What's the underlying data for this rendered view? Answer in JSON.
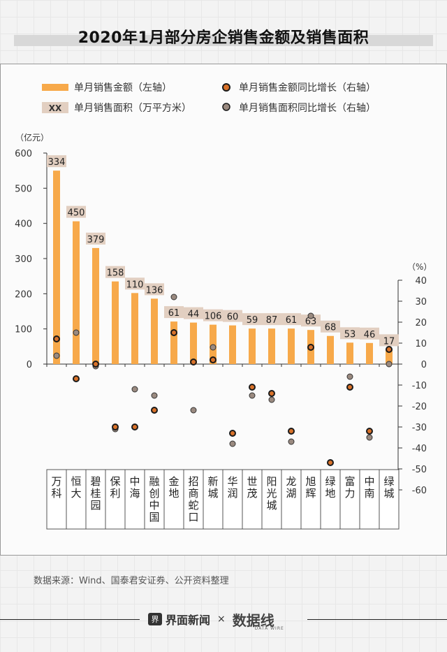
{
  "title": "2020年1月部分房企销售金额及销售面积",
  "legend": {
    "bar_label": "单月销售金额（左轴）",
    "area_chip": "XX",
    "area_label": "单月销售面积（万平方米）",
    "amount_yoy_label": "单月销售金额同比增长（右轴）",
    "area_yoy_label": "单月销售面积同比增长（右轴）"
  },
  "source": "数据来源：Wind、国泰君安证券、公开资料整理",
  "footer": {
    "brand_icon": "界",
    "brand_name": "界面新闻",
    "separator": "×",
    "partner": "数据线",
    "partner_sub": "DATA WIRE"
  },
  "colors": {
    "bar": "#f7a94a",
    "area_chip": "#e2cfc1",
    "amount_dot": "#d9722a",
    "area_dot": "#9a8a80",
    "dot_stroke": "#1a1a1a"
  },
  "chart_data": {
    "type": "bar",
    "title": "2020年1月部分房企销售金额及销售面积",
    "categories": [
      "万科",
      "恒大",
      "碧桂园",
      "保利",
      "中海",
      "融创中国",
      "金地",
      "招商蛇口",
      "新城",
      "华润",
      "世茂",
      "阳光城",
      "龙湖",
      "旭辉",
      "绿地",
      "富力",
      "中南",
      "绿城"
    ],
    "y_left": {
      "label": "（亿元）",
      "range": [
        0,
        600
      ],
      "ticks": [
        0,
        100,
        200,
        300,
        400,
        500,
        600
      ]
    },
    "y_right": {
      "label": "（%）",
      "range": [
        -60,
        40
      ],
      "ticks": [
        40,
        30,
        20,
        10,
        0,
        -10,
        -20,
        -30,
        -40,
        -50,
        -60
      ]
    },
    "series": [
      {
        "name": "单月销售金额",
        "axis": "left",
        "values": [
          550,
          406,
          330,
          235,
          202,
          186,
          121,
          118,
          112,
          110,
          101,
          101,
          101,
          97,
          80,
          61,
          60,
          41
        ]
      },
      {
        "name": "单月销售面积",
        "unit": "万平方米",
        "labels": [
          "334",
          "450",
          "379",
          "158",
          "110",
          "136",
          "61",
          "44",
          "106",
          "60",
          "59",
          "87",
          "61",
          "63",
          "68",
          "53",
          "46",
          "17"
        ]
      },
      {
        "name": "单月销售金额同比增长",
        "axis": "right",
        "values": [
          12,
          -7,
          0,
          -30,
          -30,
          -22,
          15,
          1,
          2,
          -33,
          -11,
          -14,
          -32,
          8,
          -47,
          -11,
          -32,
          7
        ]
      },
      {
        "name": "单月销售面积同比增长",
        "axis": "right",
        "values": [
          4,
          15,
          -1,
          -31,
          -12,
          -15,
          32,
          -22,
          8,
          -38,
          -15,
          -17,
          -37,
          23,
          -47,
          -6,
          -35,
          0
        ]
      }
    ]
  }
}
